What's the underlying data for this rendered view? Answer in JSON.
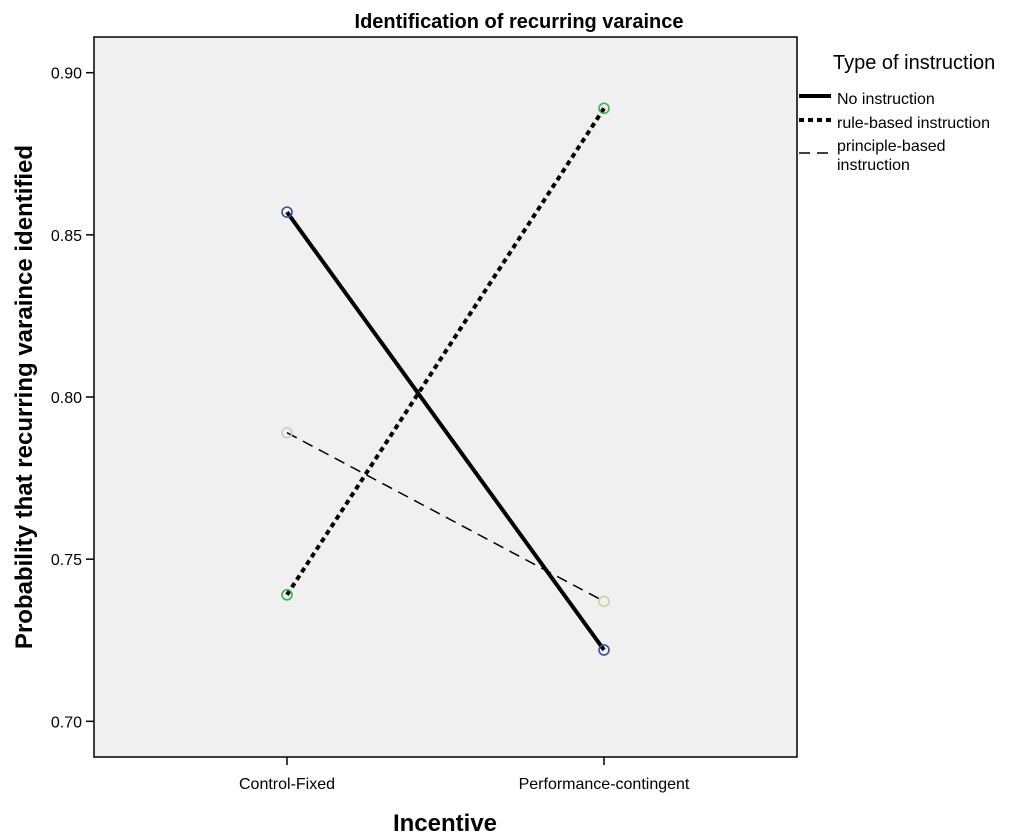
{
  "chart_data": {
    "type": "line",
    "title": "Identification of recurring varaince",
    "xlabel": "Incentive",
    "ylabel": "Probability that recurring varaince identified",
    "categories": [
      "Control-Fixed",
      "Performance-contingent"
    ],
    "ylim": [
      0.689,
      0.911
    ],
    "yticks": [
      0.7,
      0.75,
      0.8,
      0.85,
      0.9
    ],
    "ytick_labels": [
      "0.70",
      "0.75",
      "0.80",
      "0.85",
      "0.90"
    ],
    "grid": false,
    "plot_background": "#f0f0f0",
    "legend": {
      "title": "Type of instruction",
      "placement": "right"
    },
    "series": [
      {
        "name": "No instruction",
        "values": [
          0.857,
          0.722
        ],
        "line_style": "solid",
        "line_color": "#000000",
        "marker_color": "#3a4fa0"
      },
      {
        "name": "rule-based instruction",
        "values": [
          0.739,
          0.889
        ],
        "line_style": "dotted",
        "line_color": "#000000",
        "marker_color": "#3bb54a"
      },
      {
        "name": "principle-based instruction",
        "values": [
          0.789,
          0.737
        ],
        "line_style": "dashed",
        "line_color": "#000000",
        "marker_color": "#cfd0a8"
      }
    ]
  }
}
